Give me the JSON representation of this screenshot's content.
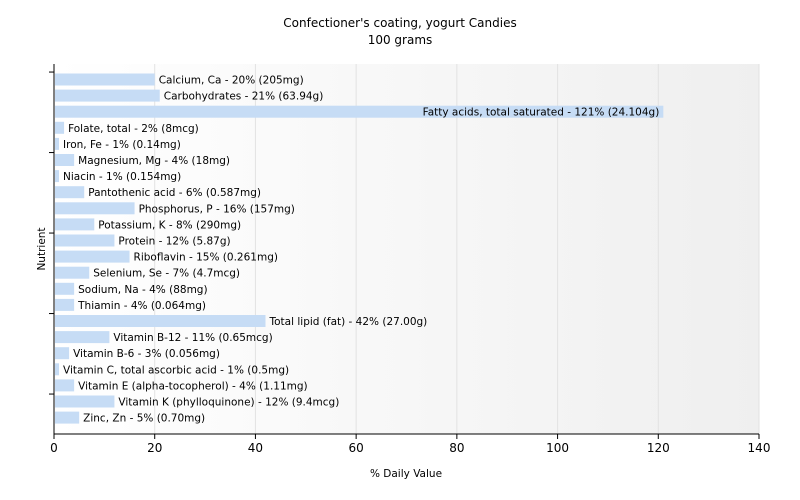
{
  "chart_data": {
    "type": "bar",
    "orientation": "horizontal",
    "title": "Confectioner's coating, yogurt Candies",
    "subtitle": "100 grams",
    "xlabel": "% Daily Value",
    "ylabel": "Nutrient",
    "xlim": [
      0,
      140
    ],
    "xticks": [
      "0",
      "20",
      "40",
      "60",
      "80",
      "100",
      "120",
      "140"
    ],
    "grid": true,
    "bar_color": "#c6dcf5",
    "categories": [
      "Calcium, Ca",
      "Carbohydrates",
      "Fatty acids, total saturated",
      "Folate, total",
      "Iron, Fe",
      "Magnesium, Mg",
      "Niacin",
      "Pantothenic acid",
      "Phosphorus, P",
      "Potassium, K",
      "Protein",
      "Riboflavin",
      "Selenium, Se",
      "Sodium, Na",
      "Thiamin",
      "Total lipid (fat)",
      "Vitamin B-12",
      "Vitamin B-6",
      "Vitamin C, total ascorbic acid",
      "Vitamin E (alpha-tocopherol)",
      "Vitamin K (phylloquinone)",
      "Zinc, Zn"
    ],
    "values": [
      20,
      21,
      121,
      2,
      1,
      4,
      1,
      6,
      16,
      8,
      12,
      15,
      7,
      4,
      4,
      42,
      11,
      3,
      1,
      4,
      12,
      5
    ],
    "labels": [
      "Calcium, Ca - 20% (205mg)",
      "Carbohydrates - 21% (63.94g)",
      "Fatty acids, total saturated - 121% (24.104g)",
      "Folate, total - 2% (8mcg)",
      "Iron, Fe - 1% (0.14mg)",
      "Magnesium, Mg - 4% (18mg)",
      "Niacin - 1% (0.154mg)",
      "Pantothenic acid - 6% (0.587mg)",
      "Phosphorus, P - 16% (157mg)",
      "Potassium, K - 8% (290mg)",
      "Protein - 12% (5.87g)",
      "Riboflavin - 15% (0.261mg)",
      "Selenium, Se - 7% (4.7mcg)",
      "Sodium, Na - 4% (88mg)",
      "Thiamin - 4% (0.064mg)",
      "Total lipid (fat) - 42% (27.00g)",
      "Vitamin B-12 - 11% (0.65mcg)",
      "Vitamin B-6 - 3% (0.056mg)",
      "Vitamin C, total ascorbic acid - 1% (0.5mg)",
      "Vitamin E (alpha-tocopherol) - 4% (1.11mg)",
      "Vitamin K (phylloquinone) - 12% (9.4mcg)",
      "Zinc, Zn - 5% (0.70mg)"
    ]
  }
}
